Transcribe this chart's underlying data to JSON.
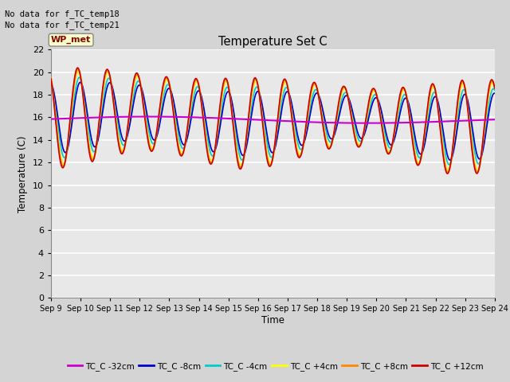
{
  "title": "Temperature Set C",
  "xlabel": "Time",
  "ylabel": "Temperature (C)",
  "ylim": [
    0,
    22
  ],
  "yticks": [
    0,
    2,
    4,
    6,
    8,
    10,
    12,
    14,
    16,
    18,
    20,
    22
  ],
  "x_labels": [
    "Sep 9",
    "Sep 10",
    "Sep 11",
    "Sep 12",
    "Sep 13",
    "Sep 14",
    "Sep 15",
    "Sep 16",
    "Sep 17",
    "Sep 18",
    "Sep 19",
    "Sep 20",
    "Sep 21",
    "Sep 22",
    "Sep 23",
    "Sep 24"
  ],
  "no_data_text": [
    "No data for f_TC_temp18",
    "No data for f_TC_temp21"
  ],
  "wp_met_label": "WP_met",
  "legend_entries": [
    {
      "label": "TC_C -32cm",
      "color": "#cc00cc"
    },
    {
      "label": "TC_C -8cm",
      "color": "#0000cc"
    },
    {
      "label": "TC_C -4cm",
      "color": "#00cccc"
    },
    {
      "label": "TC_C +4cm",
      "color": "#ffff00"
    },
    {
      "label": "TC_C +8cm",
      "color": "#ff8800"
    },
    {
      "label": "TC_C +12cm",
      "color": "#cc0000"
    }
  ],
  "fig_bg_color": "#d4d4d4",
  "plot_bg_color": "#e8e8e8",
  "grid_color": "#ffffff"
}
